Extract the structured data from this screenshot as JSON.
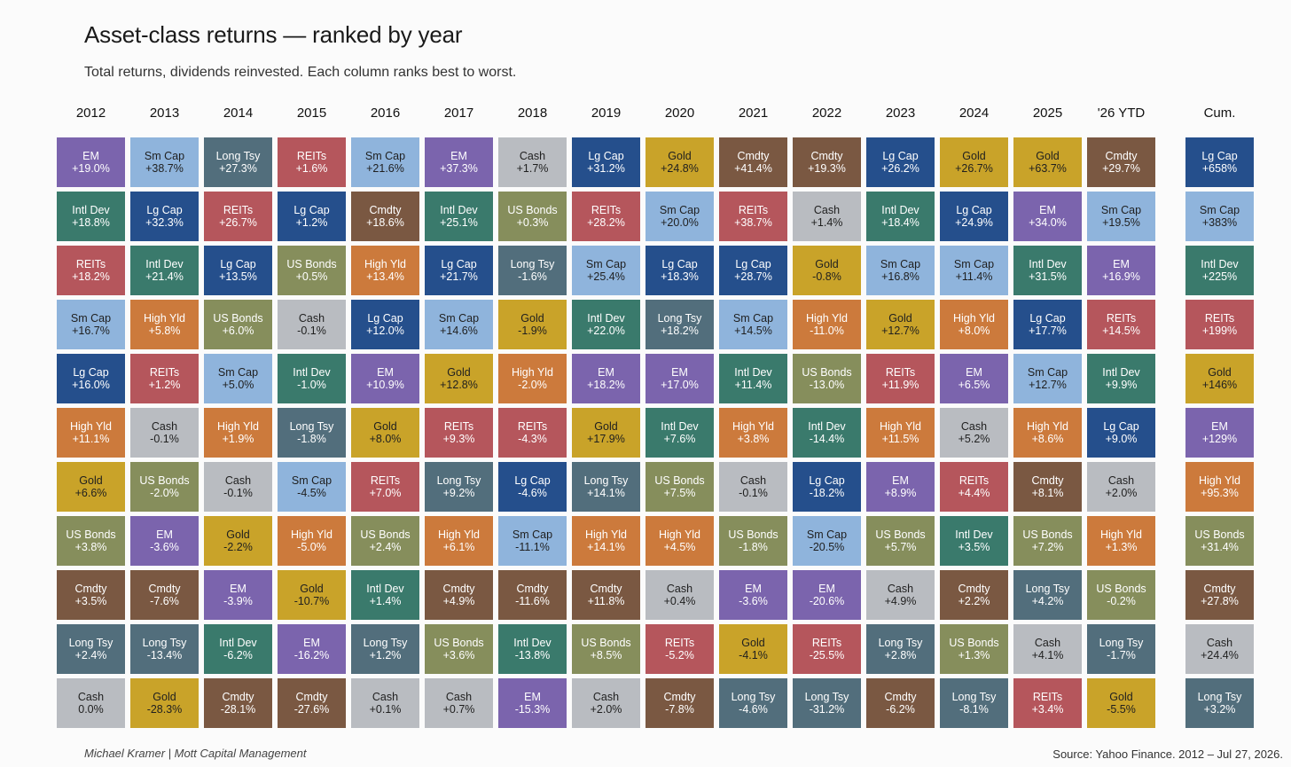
{
  "title": "Asset-class returns — ranked by year",
  "subtitle": "Total returns, dividends reinvested. Each column ranks best to worst.",
  "footer": {
    "left": "Michael Kramer  |  Mott Capital Management",
    "right": "Source: Yahoo Finance. 2012 – Jul 27, 2026."
  },
  "colors": {
    "EM": "#7b64ad",
    "Sm Cap": "#8fb4dc",
    "Long Tsy": "#526e7c",
    "REITs": "#b5565c",
    "Cash": "#b9bcc1",
    "Lg Cap": "#254f8c",
    "Gold": "#c9a329",
    "Cmdty": "#7a5842",
    "Intl Dev": "#3a7a6c",
    "US Bonds": "#868e5c",
    "High Yld": "#cc7a3c"
  },
  "light_text_classes": [
    "Sm Cap",
    "Gold",
    "Cash"
  ],
  "chart_data": {
    "type": "table",
    "columns": [
      {
        "label": "2012",
        "cells": [
          {
            "asset": "EM",
            "value": "+19.0%"
          },
          {
            "asset": "Intl Dev",
            "value": "+18.8%"
          },
          {
            "asset": "REITs",
            "value": "+18.2%"
          },
          {
            "asset": "Sm Cap",
            "value": "+16.7%"
          },
          {
            "asset": "Lg Cap",
            "value": "+16.0%"
          },
          {
            "asset": "High Yld",
            "value": "+11.1%"
          },
          {
            "asset": "Gold",
            "value": "+6.6%"
          },
          {
            "asset": "US Bonds",
            "value": "+3.8%"
          },
          {
            "asset": "Cmdty",
            "value": "+3.5%"
          },
          {
            "asset": "Long Tsy",
            "value": "+2.4%"
          },
          {
            "asset": "Cash",
            "value": "0.0%"
          }
        ]
      },
      {
        "label": "2013",
        "cells": [
          {
            "asset": "Sm Cap",
            "value": "+38.7%"
          },
          {
            "asset": "Lg Cap",
            "value": "+32.3%"
          },
          {
            "asset": "Intl Dev",
            "value": "+21.4%"
          },
          {
            "asset": "High Yld",
            "value": "+5.8%"
          },
          {
            "asset": "REITs",
            "value": "+1.2%"
          },
          {
            "asset": "Cash",
            "value": "-0.1%"
          },
          {
            "asset": "US Bonds",
            "value": "-2.0%"
          },
          {
            "asset": "EM",
            "value": "-3.6%"
          },
          {
            "asset": "Cmdty",
            "value": "-7.6%"
          },
          {
            "asset": "Long Tsy",
            "value": "-13.4%"
          },
          {
            "asset": "Gold",
            "value": "-28.3%"
          }
        ]
      },
      {
        "label": "2014",
        "cells": [
          {
            "asset": "Long Tsy",
            "value": "+27.3%"
          },
          {
            "asset": "REITs",
            "value": "+26.7%"
          },
          {
            "asset": "Lg Cap",
            "value": "+13.5%"
          },
          {
            "asset": "US Bonds",
            "value": "+6.0%"
          },
          {
            "asset": "Sm Cap",
            "value": "+5.0%"
          },
          {
            "asset": "High Yld",
            "value": "+1.9%"
          },
          {
            "asset": "Cash",
            "value": "-0.1%"
          },
          {
            "asset": "Gold",
            "value": "-2.2%"
          },
          {
            "asset": "EM",
            "value": "-3.9%"
          },
          {
            "asset": "Intl Dev",
            "value": "-6.2%"
          },
          {
            "asset": "Cmdty",
            "value": "-28.1%"
          }
        ]
      },
      {
        "label": "2015",
        "cells": [
          {
            "asset": "REITs",
            "value": "+1.6%"
          },
          {
            "asset": "Lg Cap",
            "value": "+1.2%"
          },
          {
            "asset": "US Bonds",
            "value": "+0.5%"
          },
          {
            "asset": "Cash",
            "value": "-0.1%"
          },
          {
            "asset": "Intl Dev",
            "value": "-1.0%"
          },
          {
            "asset": "Long Tsy",
            "value": "-1.8%"
          },
          {
            "asset": "Sm Cap",
            "value": "-4.5%"
          },
          {
            "asset": "High Yld",
            "value": "-5.0%"
          },
          {
            "asset": "Gold",
            "value": "-10.7%"
          },
          {
            "asset": "EM",
            "value": "-16.2%"
          },
          {
            "asset": "Cmdty",
            "value": "-27.6%"
          }
        ]
      },
      {
        "label": "2016",
        "cells": [
          {
            "asset": "Sm Cap",
            "value": "+21.6%"
          },
          {
            "asset": "Cmdty",
            "value": "+18.6%"
          },
          {
            "asset": "High Yld",
            "value": "+13.4%"
          },
          {
            "asset": "Lg Cap",
            "value": "+12.0%"
          },
          {
            "asset": "EM",
            "value": "+10.9%"
          },
          {
            "asset": "Gold",
            "value": "+8.0%"
          },
          {
            "asset": "REITs",
            "value": "+7.0%"
          },
          {
            "asset": "US Bonds",
            "value": "+2.4%"
          },
          {
            "asset": "Intl Dev",
            "value": "+1.4%"
          },
          {
            "asset": "Long Tsy",
            "value": "+1.2%"
          },
          {
            "asset": "Cash",
            "value": "+0.1%"
          }
        ]
      },
      {
        "label": "2017",
        "cells": [
          {
            "asset": "EM",
            "value": "+37.3%"
          },
          {
            "asset": "Intl Dev",
            "value": "+25.1%"
          },
          {
            "asset": "Lg Cap",
            "value": "+21.7%"
          },
          {
            "asset": "Sm Cap",
            "value": "+14.6%"
          },
          {
            "asset": "Gold",
            "value": "+12.8%"
          },
          {
            "asset": "REITs",
            "value": "+9.3%"
          },
          {
            "asset": "Long Tsy",
            "value": "+9.2%"
          },
          {
            "asset": "High Yld",
            "value": "+6.1%"
          },
          {
            "asset": "Cmdty",
            "value": "+4.9%"
          },
          {
            "asset": "US Bonds",
            "value": "+3.6%"
          },
          {
            "asset": "Cash",
            "value": "+0.7%"
          }
        ]
      },
      {
        "label": "2018",
        "cells": [
          {
            "asset": "Cash",
            "value": "+1.7%"
          },
          {
            "asset": "US Bonds",
            "value": "+0.3%"
          },
          {
            "asset": "Long Tsy",
            "value": "-1.6%"
          },
          {
            "asset": "Gold",
            "value": "-1.9%"
          },
          {
            "asset": "High Yld",
            "value": "-2.0%"
          },
          {
            "asset": "REITs",
            "value": "-4.3%"
          },
          {
            "asset": "Lg Cap",
            "value": "-4.6%"
          },
          {
            "asset": "Sm Cap",
            "value": "-11.1%"
          },
          {
            "asset": "Cmdty",
            "value": "-11.6%"
          },
          {
            "asset": "Intl Dev",
            "value": "-13.8%"
          },
          {
            "asset": "EM",
            "value": "-15.3%"
          }
        ]
      },
      {
        "label": "2019",
        "cells": [
          {
            "asset": "Lg Cap",
            "value": "+31.2%"
          },
          {
            "asset": "REITs",
            "value": "+28.2%"
          },
          {
            "asset": "Sm Cap",
            "value": "+25.4%"
          },
          {
            "asset": "Intl Dev",
            "value": "+22.0%"
          },
          {
            "asset": "EM",
            "value": "+18.2%"
          },
          {
            "asset": "Gold",
            "value": "+17.9%"
          },
          {
            "asset": "Long Tsy",
            "value": "+14.1%"
          },
          {
            "asset": "High Yld",
            "value": "+14.1%"
          },
          {
            "asset": "Cmdty",
            "value": "+11.8%"
          },
          {
            "asset": "US Bonds",
            "value": "+8.5%"
          },
          {
            "asset": "Cash",
            "value": "+2.0%"
          }
        ]
      },
      {
        "label": "2020",
        "cells": [
          {
            "asset": "Gold",
            "value": "+24.8%"
          },
          {
            "asset": "Sm Cap",
            "value": "+20.0%"
          },
          {
            "asset": "Lg Cap",
            "value": "+18.3%"
          },
          {
            "asset": "Long Tsy",
            "value": "+18.2%"
          },
          {
            "asset": "EM",
            "value": "+17.0%"
          },
          {
            "asset": "Intl Dev",
            "value": "+7.6%"
          },
          {
            "asset": "US Bonds",
            "value": "+7.5%"
          },
          {
            "asset": "High Yld",
            "value": "+4.5%"
          },
          {
            "asset": "Cash",
            "value": "+0.4%"
          },
          {
            "asset": "REITs",
            "value": "-5.2%"
          },
          {
            "asset": "Cmdty",
            "value": "-7.8%"
          }
        ]
      },
      {
        "label": "2021",
        "cells": [
          {
            "asset": "Cmdty",
            "value": "+41.4%"
          },
          {
            "asset": "REITs",
            "value": "+38.7%"
          },
          {
            "asset": "Lg Cap",
            "value": "+28.7%"
          },
          {
            "asset": "Sm Cap",
            "value": "+14.5%"
          },
          {
            "asset": "Intl Dev",
            "value": "+11.4%"
          },
          {
            "asset": "High Yld",
            "value": "+3.8%"
          },
          {
            "asset": "Cash",
            "value": "-0.1%"
          },
          {
            "asset": "US Bonds",
            "value": "-1.8%"
          },
          {
            "asset": "EM",
            "value": "-3.6%"
          },
          {
            "asset": "Gold",
            "value": "-4.1%"
          },
          {
            "asset": "Long Tsy",
            "value": "-4.6%"
          }
        ]
      },
      {
        "label": "2022",
        "cells": [
          {
            "asset": "Cmdty",
            "value": "+19.3%"
          },
          {
            "asset": "Cash",
            "value": "+1.4%"
          },
          {
            "asset": "Gold",
            "value": "-0.8%"
          },
          {
            "asset": "High Yld",
            "value": "-11.0%"
          },
          {
            "asset": "US Bonds",
            "value": "-13.0%"
          },
          {
            "asset": "Intl Dev",
            "value": "-14.4%"
          },
          {
            "asset": "Lg Cap",
            "value": "-18.2%"
          },
          {
            "asset": "Sm Cap",
            "value": "-20.5%"
          },
          {
            "asset": "EM",
            "value": "-20.6%"
          },
          {
            "asset": "REITs",
            "value": "-25.5%"
          },
          {
            "asset": "Long Tsy",
            "value": "-31.2%"
          }
        ]
      },
      {
        "label": "2023",
        "cells": [
          {
            "asset": "Lg Cap",
            "value": "+26.2%"
          },
          {
            "asset": "Intl Dev",
            "value": "+18.4%"
          },
          {
            "asset": "Sm Cap",
            "value": "+16.8%"
          },
          {
            "asset": "Gold",
            "value": "+12.7%"
          },
          {
            "asset": "REITs",
            "value": "+11.9%"
          },
          {
            "asset": "High Yld",
            "value": "+11.5%"
          },
          {
            "asset": "EM",
            "value": "+8.9%"
          },
          {
            "asset": "US Bonds",
            "value": "+5.7%"
          },
          {
            "asset": "Cash",
            "value": "+4.9%"
          },
          {
            "asset": "Long Tsy",
            "value": "+2.8%"
          },
          {
            "asset": "Cmdty",
            "value": "-6.2%"
          }
        ]
      },
      {
        "label": "2024",
        "cells": [
          {
            "asset": "Gold",
            "value": "+26.7%"
          },
          {
            "asset": "Lg Cap",
            "value": "+24.9%"
          },
          {
            "asset": "Sm Cap",
            "value": "+11.4%"
          },
          {
            "asset": "High Yld",
            "value": "+8.0%"
          },
          {
            "asset": "EM",
            "value": "+6.5%"
          },
          {
            "asset": "Cash",
            "value": "+5.2%"
          },
          {
            "asset": "REITs",
            "value": "+4.4%"
          },
          {
            "asset": "Intl Dev",
            "value": "+3.5%"
          },
          {
            "asset": "Cmdty",
            "value": "+2.2%"
          },
          {
            "asset": "US Bonds",
            "value": "+1.3%"
          },
          {
            "asset": "Long Tsy",
            "value": "-8.1%"
          }
        ]
      },
      {
        "label": "2025",
        "cells": [
          {
            "asset": "Gold",
            "value": "+63.7%"
          },
          {
            "asset": "EM",
            "value": "+34.0%"
          },
          {
            "asset": "Intl Dev",
            "value": "+31.5%"
          },
          {
            "asset": "Lg Cap",
            "value": "+17.7%"
          },
          {
            "asset": "Sm Cap",
            "value": "+12.7%"
          },
          {
            "asset": "High Yld",
            "value": "+8.6%"
          },
          {
            "asset": "Cmdty",
            "value": "+8.1%"
          },
          {
            "asset": "US Bonds",
            "value": "+7.2%"
          },
          {
            "asset": "Long Tsy",
            "value": "+4.2%"
          },
          {
            "asset": "Cash",
            "value": "+4.1%"
          },
          {
            "asset": "REITs",
            "value": "+3.4%"
          }
        ]
      },
      {
        "label": "'26 YTD",
        "cells": [
          {
            "asset": "Cmdty",
            "value": "+29.7%"
          },
          {
            "asset": "Sm Cap",
            "value": "+19.5%"
          },
          {
            "asset": "EM",
            "value": "+16.9%"
          },
          {
            "asset": "REITs",
            "value": "+14.5%"
          },
          {
            "asset": "Intl Dev",
            "value": "+9.9%"
          },
          {
            "asset": "Lg Cap",
            "value": "+9.0%"
          },
          {
            "asset": "Cash",
            "value": "+2.0%"
          },
          {
            "asset": "High Yld",
            "value": "+1.3%"
          },
          {
            "asset": "US Bonds",
            "value": "-0.2%"
          },
          {
            "asset": "Long Tsy",
            "value": "-1.7%"
          },
          {
            "asset": "Gold",
            "value": "-5.5%"
          }
        ]
      },
      {
        "label": "Cum.",
        "cells": [
          {
            "asset": "Lg Cap",
            "value": "+658%"
          },
          {
            "asset": "Sm Cap",
            "value": "+383%"
          },
          {
            "asset": "Intl Dev",
            "value": "+225%"
          },
          {
            "asset": "REITs",
            "value": "+199%"
          },
          {
            "asset": "Gold",
            "value": "+146%"
          },
          {
            "asset": "EM",
            "value": "+129%"
          },
          {
            "asset": "High Yld",
            "value": "+95.3%"
          },
          {
            "asset": "US Bonds",
            "value": "+31.4%"
          },
          {
            "asset": "Cmdty",
            "value": "+27.8%"
          },
          {
            "asset": "Cash",
            "value": "+24.4%"
          },
          {
            "asset": "Long Tsy",
            "value": "+3.2%"
          }
        ]
      }
    ]
  }
}
